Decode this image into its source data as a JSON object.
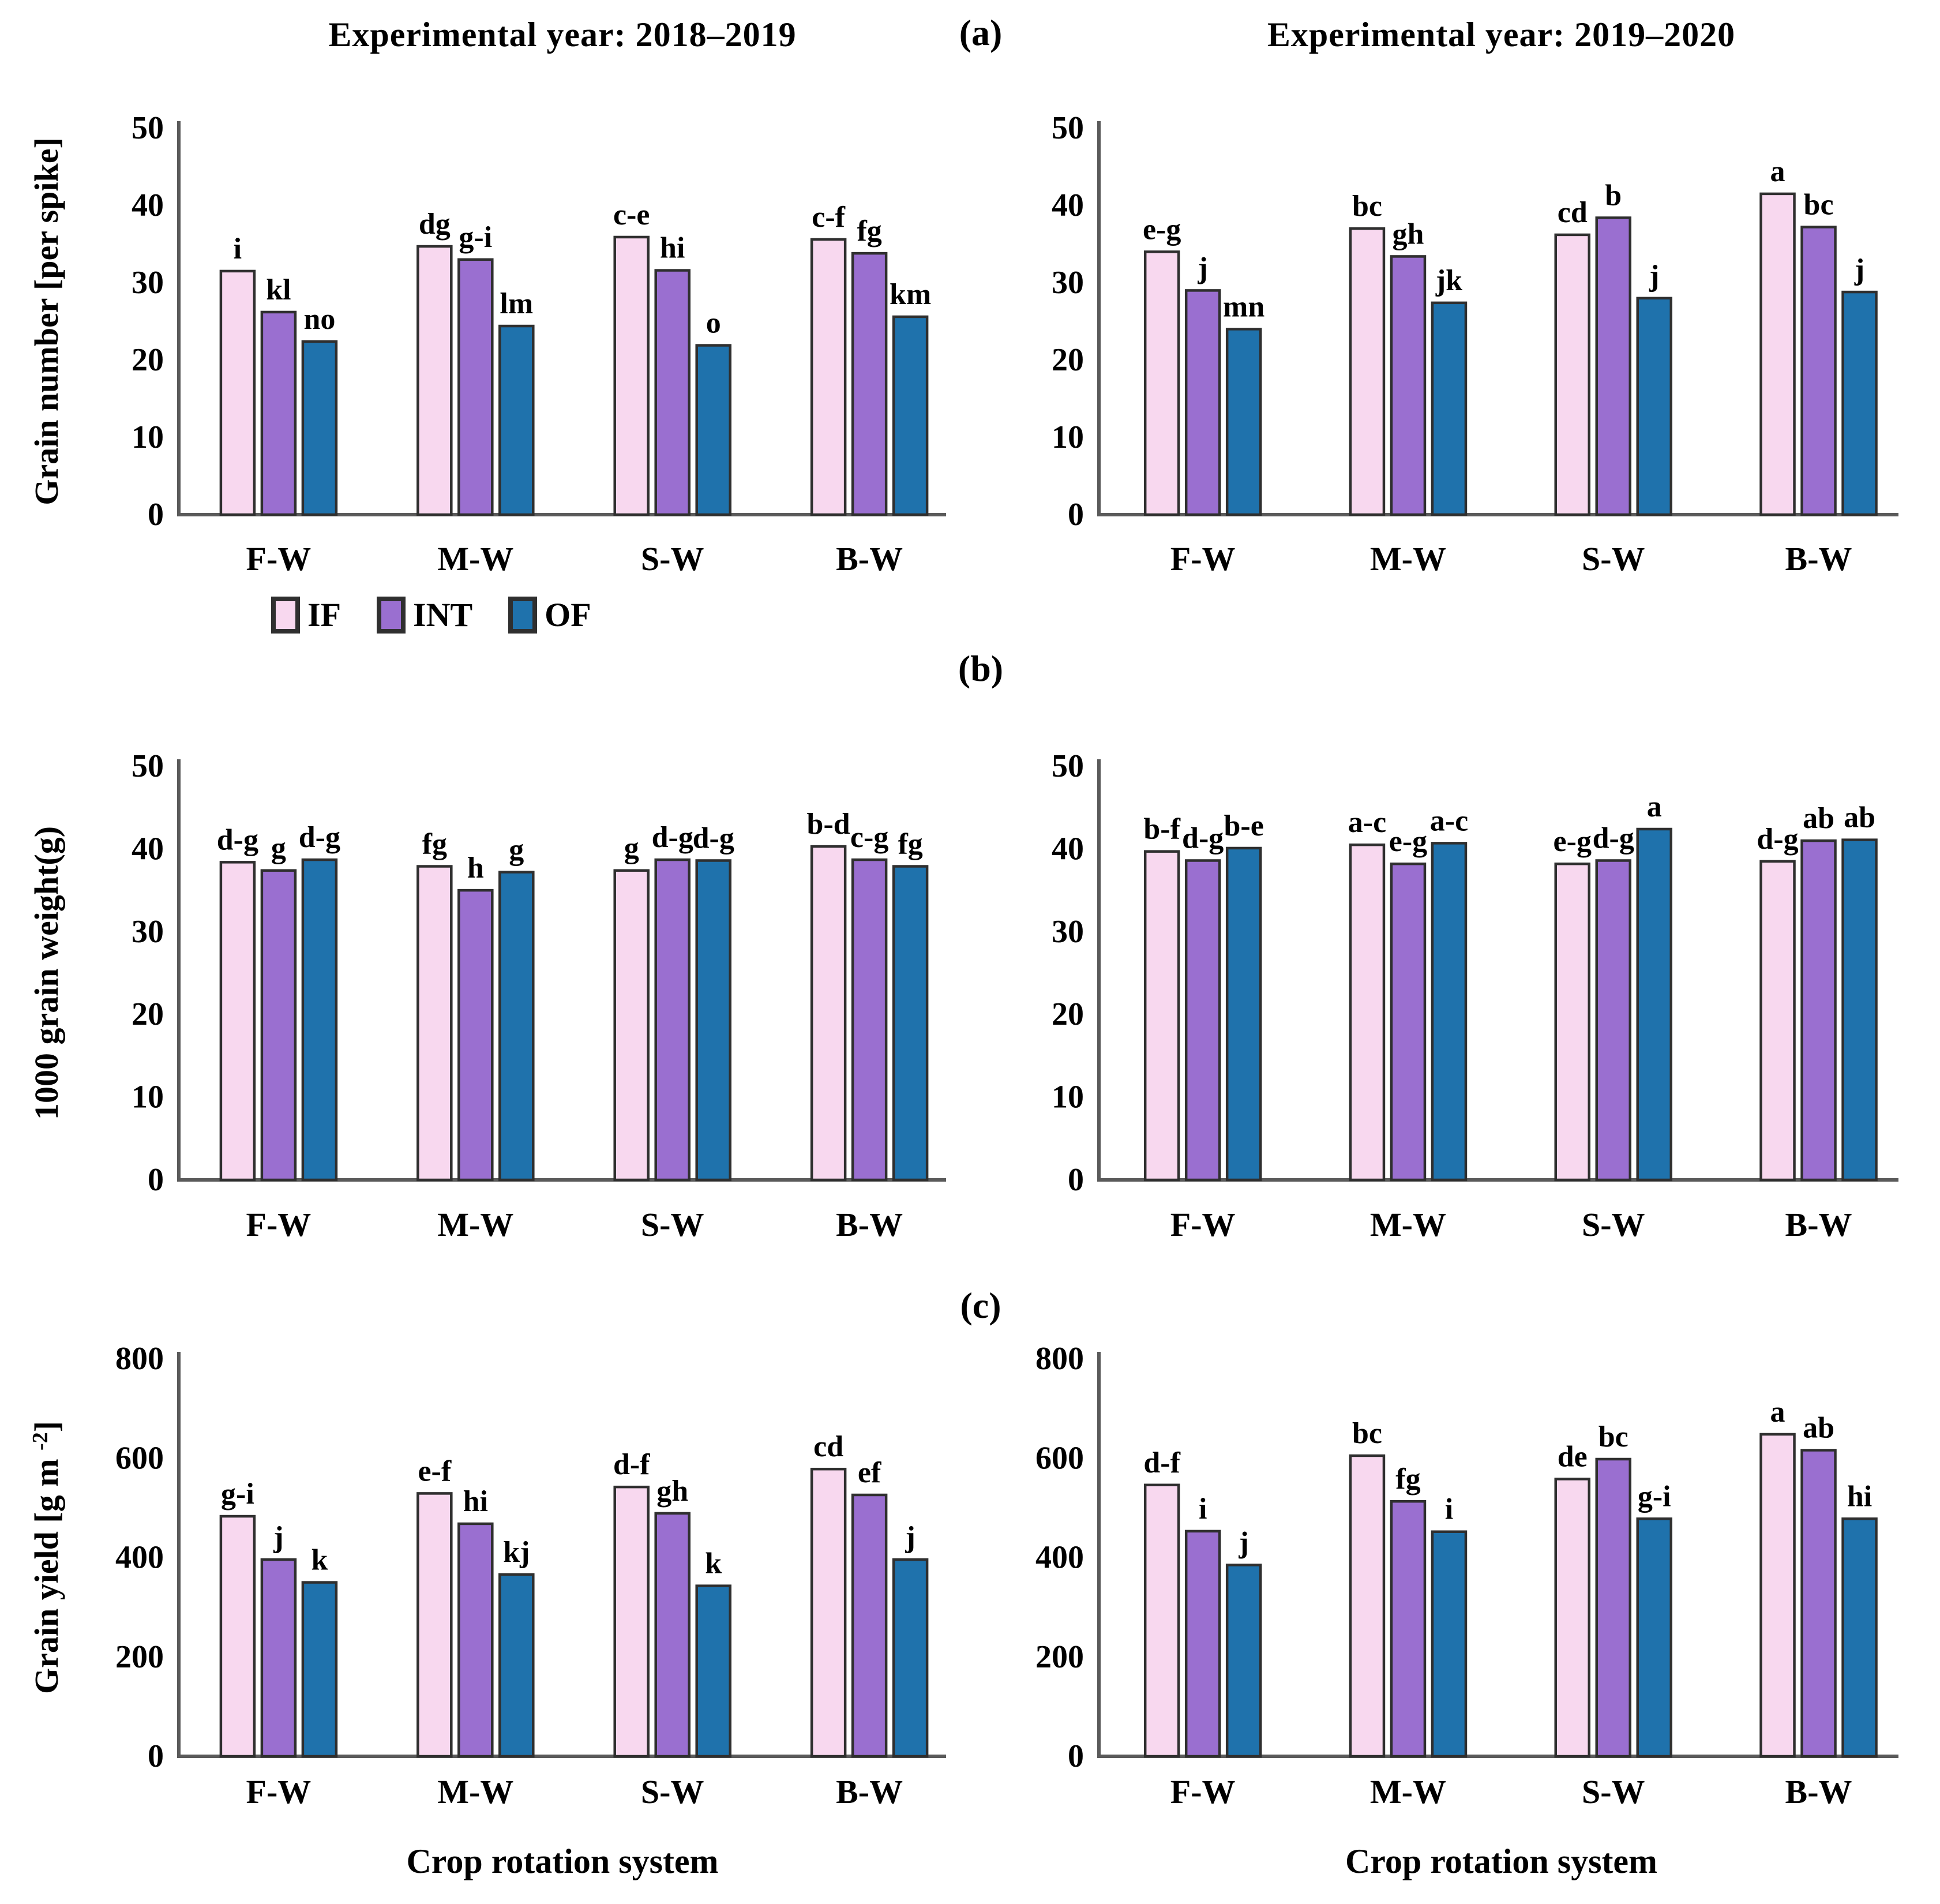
{
  "figure": {
    "panel_labels": {
      "a": "(a)",
      "b": "(b)",
      "c": "(c)"
    },
    "column_titles": {
      "left": "Experimental year: 2018–2019",
      "right": "Experimental year: 2019–2020"
    },
    "x_axis_label": "Crop rotation system",
    "legend": {
      "items": [
        {
          "label": "IF",
          "color": "#f8d8ef"
        },
        {
          "label": "INT",
          "color": "#9a6fd0"
        },
        {
          "label": "OF",
          "color": "#1f72ac"
        }
      ]
    },
    "colors": {
      "if_fill": "#f8d8ef",
      "int_fill": "#9a6fd0",
      "of_fill": "#1f72ac",
      "bar_border": "#2f2f2f",
      "axis": "#5a5a5a",
      "text": "#000000"
    }
  },
  "chart_data": [
    {
      "id": "grain-number-2018-2019",
      "type": "bar",
      "panel": "a",
      "column": "left",
      "title": "Experimental year: 2018–2019",
      "ylabel_segments": [
        {
          "t": "Grain number [per spike]"
        }
      ],
      "ylim": [
        0,
        50
      ],
      "yticks": [
        0,
        10,
        20,
        30,
        40,
        50
      ],
      "categories": [
        "F-W",
        "M-W",
        "S-W",
        "B-W"
      ],
      "series": [
        {
          "name": "IF",
          "color": "#f8d8ef",
          "values": [
            31.5,
            34.7,
            35.9,
            35.6
          ],
          "letters": [
            "i",
            "dg",
            "c-e",
            "c-f"
          ]
        },
        {
          "name": "INT",
          "color": "#9a6fd0",
          "values": [
            26.2,
            33.0,
            31.6,
            33.8
          ],
          "letters": [
            "kl",
            "g-i",
            "hi",
            "fg"
          ]
        },
        {
          "name": "OF",
          "color": "#1f72ac",
          "values": [
            22.4,
            24.4,
            21.9,
            25.6
          ],
          "letters": [
            "no",
            "lm",
            "o",
            "km"
          ]
        }
      ]
    },
    {
      "id": "grain-number-2019-2020",
      "type": "bar",
      "panel": "a",
      "column": "right",
      "title": "Experimental year: 2019–2020",
      "ylabel_segments": null,
      "ylim": [
        0,
        50
      ],
      "yticks": [
        0,
        10,
        20,
        30,
        40,
        50
      ],
      "categories": [
        "F-W",
        "M-W",
        "S-W",
        "B-W"
      ],
      "series": [
        {
          "name": "IF",
          "color": "#f8d8ef",
          "values": [
            34.0,
            37.0,
            36.2,
            41.5
          ],
          "letters": [
            "e-g",
            "bc",
            "cd",
            "a"
          ]
        },
        {
          "name": "INT",
          "color": "#9a6fd0",
          "values": [
            29.0,
            33.4,
            38.4,
            37.2
          ],
          "letters": [
            "j",
            "gh",
            "b",
            "bc"
          ]
        },
        {
          "name": "OF",
          "color": "#1f72ac",
          "values": [
            24.0,
            27.4,
            28.0,
            28.8
          ],
          "letters": [
            "mn",
            "jk",
            "j",
            "j"
          ]
        }
      ]
    },
    {
      "id": "grain-weight-2018-2019",
      "type": "bar",
      "panel": "b",
      "column": "left",
      "title": null,
      "ylabel_segments": [
        {
          "t": "1000 grain weight(g)"
        }
      ],
      "ylim": [
        0,
        50
      ],
      "yticks": [
        0,
        10,
        20,
        30,
        40,
        50
      ],
      "categories": [
        "F-W",
        "M-W",
        "S-W",
        "B-W"
      ],
      "series": [
        {
          "name": "IF",
          "color": "#f8d8ef",
          "values": [
            38.4,
            37.9,
            37.4,
            40.3
          ],
          "letters": [
            "d-g",
            "fg",
            "g",
            "b-d"
          ]
        },
        {
          "name": "INT",
          "color": "#9a6fd0",
          "values": [
            37.4,
            35.0,
            38.7,
            38.7
          ],
          "letters": [
            "g",
            "h",
            "d-g",
            "c-g"
          ]
        },
        {
          "name": "OF",
          "color": "#1f72ac",
          "values": [
            38.7,
            37.2,
            38.6,
            37.9
          ],
          "letters": [
            "d-g",
            "g",
            "d-g",
            "fg"
          ]
        }
      ]
    },
    {
      "id": "grain-weight-2019-2020",
      "type": "bar",
      "panel": "b",
      "column": "right",
      "title": null,
      "ylabel_segments": null,
      "ylim": [
        0,
        50
      ],
      "yticks": [
        0,
        10,
        20,
        30,
        40,
        50
      ],
      "categories": [
        "F-W",
        "M-W",
        "S-W",
        "B-W"
      ],
      "series": [
        {
          "name": "IF",
          "color": "#f8d8ef",
          "values": [
            39.7,
            40.5,
            38.2,
            38.5
          ],
          "letters": [
            "b-f",
            "a-c",
            "e-g",
            "d-g"
          ]
        },
        {
          "name": "INT",
          "color": "#9a6fd0",
          "values": [
            38.6,
            38.2,
            38.6,
            41.0
          ],
          "letters": [
            "d-g",
            "e-g",
            "d-g",
            "ab"
          ]
        },
        {
          "name": "OF",
          "color": "#1f72ac",
          "values": [
            40.1,
            40.7,
            42.4,
            41.1
          ],
          "letters": [
            "b-e",
            "a-c",
            "a",
            "ab"
          ]
        }
      ]
    },
    {
      "id": "grain-yield-2018-2019",
      "type": "bar",
      "panel": "c",
      "column": "left",
      "title": null,
      "ylabel_segments": [
        {
          "t": "Grain yield [g m "
        },
        {
          "t": "-2",
          "sup": true
        },
        {
          "t": "]"
        }
      ],
      "ylim": [
        0,
        800
      ],
      "yticks": [
        0,
        200,
        400,
        600,
        800
      ],
      "categories": [
        "F-W",
        "M-W",
        "S-W",
        "B-W"
      ],
      "series": [
        {
          "name": "IF",
          "color": "#f8d8ef",
          "values": [
            483,
            529,
            542,
            578
          ],
          "letters": [
            "g-i",
            "e-f",
            "d-f",
            "cd"
          ]
        },
        {
          "name": "INT",
          "color": "#9a6fd0",
          "values": [
            396,
            468,
            489,
            526
          ],
          "letters": [
            "j",
            "hi",
            "gh",
            "ef"
          ]
        },
        {
          "name": "OF",
          "color": "#1f72ac",
          "values": [
            350,
            366,
            343,
            396
          ],
          "letters": [
            "k",
            "kj",
            "k",
            "j"
          ]
        }
      ]
    },
    {
      "id": "grain-yield-2019-2020",
      "type": "bar",
      "panel": "c",
      "column": "right",
      "title": null,
      "ylabel_segments": null,
      "ylim": [
        0,
        800
      ],
      "yticks": [
        0,
        200,
        400,
        600,
        800
      ],
      "categories": [
        "F-W",
        "M-W",
        "S-W",
        "B-W"
      ],
      "series": [
        {
          "name": "IF",
          "color": "#f8d8ef",
          "values": [
            546,
            605,
            558,
            648
          ],
          "letters": [
            "d-f",
            "bc",
            "de",
            "a"
          ]
        },
        {
          "name": "INT",
          "color": "#9a6fd0",
          "values": [
            453,
            513,
            598,
            616
          ],
          "letters": [
            "i",
            "fg",
            "bc",
            "ab"
          ]
        },
        {
          "name": "OF",
          "color": "#1f72ac",
          "values": [
            385,
            452,
            478,
            478
          ],
          "letters": [
            "j",
            "i",
            "g-i",
            "hi"
          ]
        }
      ]
    }
  ]
}
